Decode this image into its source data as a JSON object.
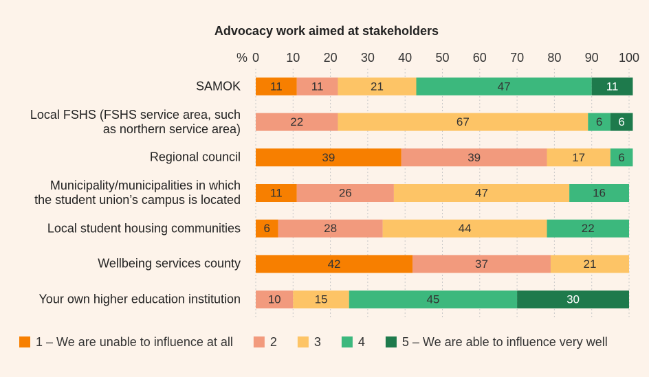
{
  "chart_data": {
    "type": "stacked-bar",
    "title": "Advocacy work aimed at stakeholders",
    "xlabel": "%",
    "categories": [
      "SAMOK",
      "Local FSHS (FSHS service area, such\nas northern service area)",
      "Regional council",
      "Municipality/municipalities in which\nthe student union’s campus is located",
      "Local student housing communities",
      "Wellbeing services county",
      "Your own higher education institution"
    ],
    "series": [
      {
        "name": "1 – We are unable to influence at all",
        "color": "#f77f00",
        "values": [
          11,
          null,
          39,
          11,
          6,
          42,
          null
        ]
      },
      {
        "name": "2",
        "color": "#f29a7d",
        "values": [
          11,
          22,
          39,
          26,
          28,
          37,
          10
        ]
      },
      {
        "name": "3",
        "color": "#fdc466",
        "values": [
          21,
          67,
          17,
          47,
          44,
          21,
          15
        ]
      },
      {
        "name": "4",
        "color": "#3cb87d",
        "values": [
          47,
          6,
          6,
          16,
          22,
          null,
          45
        ]
      },
      {
        "name": "5 – We are able to influence very well",
        "color": "#1e7a4c",
        "values": [
          11,
          6,
          null,
          null,
          null,
          null,
          30
        ]
      }
    ],
    "xlim": [
      0,
      100
    ],
    "xticks": [
      0,
      10,
      20,
      30,
      40,
      50,
      60,
      70,
      80,
      90,
      100
    ],
    "grid": true
  }
}
